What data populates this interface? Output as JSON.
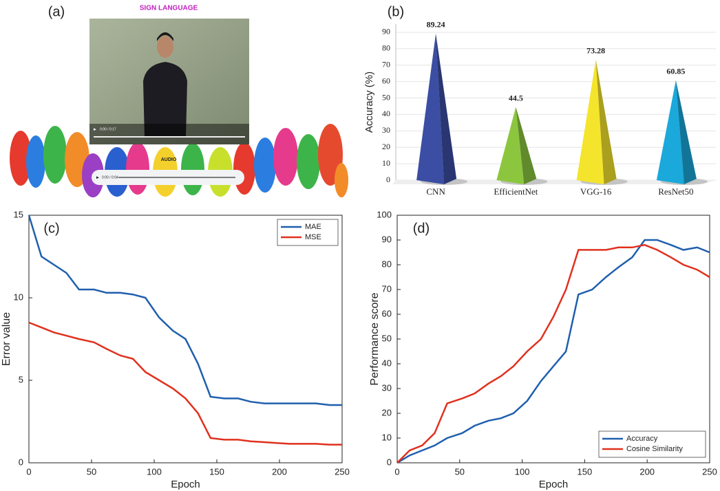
{
  "screenshot": {
    "panel_label": "(a)",
    "title": "SIGN LANGUAGE",
    "video_time": "0:00 / 0:17",
    "audio_label": "AUDIO",
    "audio_time": "0:00 / 0:04"
  },
  "chart_data": [
    {
      "type": "bar",
      "panel_label": "(b)",
      "ylabel": "Accuracy (%)",
      "categories": [
        "CNN",
        "EfficientNet",
        "VGG-16",
        "ResNet50"
      ],
      "values": [
        89.24,
        44.5,
        73.28,
        60.85
      ],
      "colors": [
        "#3b4ea3",
        "#8cc63f",
        "#f4e42c",
        "#1ba8da"
      ],
      "ylim": [
        0,
        95
      ],
      "yticks": [
        0,
        10,
        20,
        30,
        40,
        50,
        60,
        70,
        80,
        90
      ],
      "grid": true
    },
    {
      "type": "line",
      "panel_label": "(c)",
      "xlabel": "Epoch",
      "ylabel": "Error value",
      "x": [
        0,
        10,
        20,
        30,
        40,
        52,
        62,
        73,
        83,
        93,
        104,
        115,
        125,
        135,
        145,
        156,
        167,
        177,
        188,
        198,
        208,
        219,
        229,
        240,
        250
      ],
      "series": [
        {
          "name": "MAE",
          "color": "#1f5fad",
          "values": [
            15,
            12.5,
            12,
            11.5,
            10.5,
            10.5,
            10.3,
            10.3,
            10.2,
            10,
            8.8,
            8,
            7.5,
            6,
            4,
            3.9,
            3.9,
            3.7,
            3.6,
            3.6,
            3.6,
            3.6,
            3.6,
            3.5,
            3.5
          ]
        },
        {
          "name": "MSE",
          "color": "#e0301e",
          "values": [
            8.5,
            8.2,
            7.9,
            7.7,
            7.5,
            7.3,
            6.9,
            6.5,
            6.3,
            5.5,
            5,
            4.5,
            3.9,
            3,
            1.5,
            1.4,
            1.4,
            1.3,
            1.25,
            1.2,
            1.15,
            1.15,
            1.15,
            1.1,
            1.1
          ]
        }
      ],
      "xlim": [
        0,
        250
      ],
      "xticks": [
        0,
        50,
        100,
        150,
        200,
        250
      ],
      "ylim": [
        0,
        15
      ],
      "yticks": [
        0,
        5,
        10,
        15
      ],
      "grid": false,
      "legend": "upper right"
    },
    {
      "type": "line",
      "panel_label": "(d)",
      "xlabel": "Epoch",
      "ylabel": "Performance score",
      "x": [
        0,
        10,
        20,
        30,
        40,
        52,
        62,
        73,
        83,
        93,
        104,
        115,
        125,
        135,
        145,
        156,
        167,
        177,
        188,
        198,
        208,
        219,
        229,
        240,
        250
      ],
      "series": [
        {
          "name": "Accuracy",
          "color": "#1f5fad",
          "values": [
            0,
            3,
            5,
            7,
            10,
            12,
            15,
            17,
            18,
            20,
            25,
            33,
            39,
            45,
            68,
            70,
            75,
            79,
            83,
            90,
            90,
            88,
            86,
            87,
            85
          ]
        },
        {
          "name": "Cosine Similarity",
          "color": "#e0301e",
          "values": [
            0,
            5,
            7,
            12,
            24,
            26,
            28,
            32,
            35,
            39,
            45,
            50,
            59,
            70,
            86,
            86,
            86,
            87,
            87,
            88,
            86,
            83,
            80,
            78,
            75
          ]
        }
      ],
      "xlim": [
        0,
        250
      ],
      "xticks": [
        0,
        50,
        100,
        150,
        200,
        250
      ],
      "ylim": [
        0,
        100
      ],
      "yticks": [
        0,
        10,
        20,
        30,
        40,
        50,
        60,
        70,
        80,
        90,
        100
      ],
      "grid": false,
      "legend": "lower right"
    }
  ]
}
